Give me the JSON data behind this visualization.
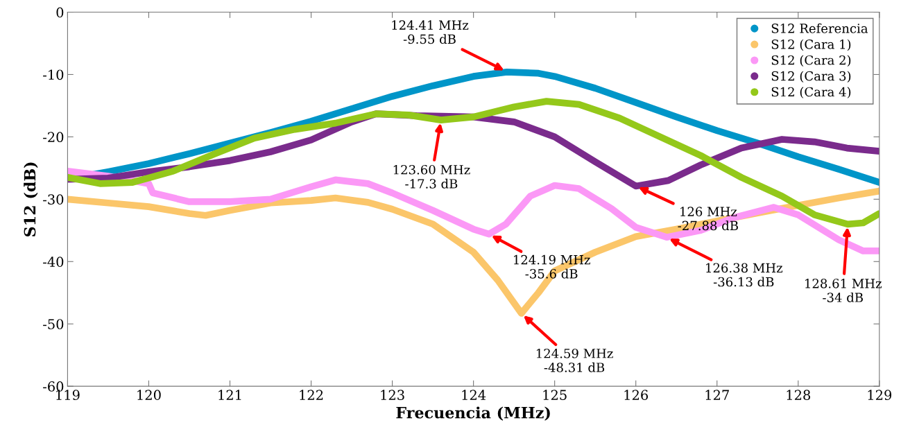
{
  "chart_data": {
    "type": "line",
    "xlabel": "Frecuencia (MHz)",
    "ylabel": "S12 (dB)",
    "xlim": [
      119,
      129
    ],
    "ylim": [
      -60,
      0
    ],
    "xticks": [
      119,
      120,
      121,
      122,
      123,
      124,
      125,
      126,
      127,
      128,
      129
    ],
    "yticks": [
      -60,
      -50,
      -40,
      -30,
      -20,
      -10,
      0
    ],
    "grid": false,
    "legend": "top right",
    "marker": "circle",
    "line_style": "solid",
    "series": [
      {
        "name": "S12 Referencia",
        "color": "#0095c8",
        "x": [
          119.2,
          119.5,
          120,
          120.5,
          121,
          121.5,
          122,
          122.5,
          123,
          123.5,
          124,
          124.41,
          124.8,
          125,
          125.5,
          126,
          126.5,
          127,
          127.5,
          128,
          128.5,
          129
        ],
        "values": [
          -26.3,
          -25.6,
          -24.3,
          -22.7,
          -21.0,
          -19.3,
          -17.5,
          -15.5,
          -13.5,
          -11.8,
          -10.3,
          -9.6,
          -9.8,
          -10.3,
          -12.2,
          -14.5,
          -16.8,
          -19.0,
          -21.0,
          -23.2,
          -25.2,
          -27.3
        ]
      },
      {
        "name": "S12 (Cara 1)",
        "color": "#fbc66a",
        "x": [
          119,
          119.5,
          120,
          120.5,
          120.7,
          121,
          121.5,
          122,
          122.3,
          122.7,
          123,
          123.5,
          124,
          124.3,
          124.59,
          124.8,
          125,
          125.5,
          126,
          126.5,
          127,
          127.5,
          128,
          128.5,
          129
        ],
        "values": [
          -30,
          -30.6,
          -31.2,
          -32.3,
          -32.6,
          -31.8,
          -30.6,
          -30.2,
          -29.8,
          -30.5,
          -31.6,
          -34,
          -38.5,
          -43,
          -48.3,
          -45,
          -41.5,
          -38.5,
          -36,
          -34.8,
          -33.5,
          -32.2,
          -31,
          -29.8,
          -28.7
        ]
      },
      {
        "name": "S12 (Cara 2)",
        "color": "#fb98f6",
        "x": [
          119,
          119.5,
          120,
          120.05,
          120.5,
          121,
          121.5,
          122,
          122.3,
          122.7,
          123,
          123.5,
          124,
          124.19,
          124.4,
          124.7,
          125,
          125.3,
          125.7,
          126,
          126.38,
          126.8,
          127.2,
          127.7,
          128,
          128.5,
          128.8,
          129
        ],
        "values": [
          -25.5,
          -26.3,
          -27.5,
          -29.0,
          -30.4,
          -30.4,
          -30.0,
          -28,
          -26.9,
          -27.5,
          -29,
          -31.8,
          -34.8,
          -35.6,
          -34,
          -29.5,
          -27.8,
          -28.3,
          -31.5,
          -34.5,
          -36.1,
          -35,
          -33,
          -31.3,
          -32.5,
          -36.5,
          -38.3,
          -38.3
        ]
      },
      {
        "name": "S12 (Cara 3)",
        "color": "#7a2b8c",
        "x": [
          119,
          119.5,
          120,
          120.5,
          121,
          121.5,
          122,
          122.5,
          122.8,
          123.3,
          124,
          124.5,
          125,
          125.5,
          126,
          126.4,
          126.8,
          127.3,
          127.8,
          128.2,
          128.6,
          129
        ],
        "values": [
          -26.8,
          -26.6,
          -25.6,
          -24.8,
          -23.8,
          -22.4,
          -20.5,
          -17.6,
          -16.3,
          -16.6,
          -16.8,
          -17.6,
          -20,
          -24,
          -27.9,
          -27,
          -24.5,
          -21.8,
          -20.4,
          -20.8,
          -21.8,
          -22.3
        ]
      },
      {
        "name": "S12 (Cara 4)",
        "color": "#94c81a",
        "x": [
          119,
          119.4,
          119.8,
          120.3,
          120.8,
          121.3,
          121.8,
          122.3,
          122.8,
          123.2,
          123.6,
          124,
          124.5,
          124.9,
          125.3,
          125.8,
          126.3,
          126.8,
          127.3,
          127.8,
          128.2,
          128.61,
          128.8,
          129
        ],
        "values": [
          -26.5,
          -27.5,
          -27.3,
          -25.5,
          -22.8,
          -20.2,
          -18.8,
          -17.8,
          -16.3,
          -16.5,
          -17.3,
          -16.8,
          -15.2,
          -14.3,
          -14.8,
          -17.0,
          -20.0,
          -23,
          -26.5,
          -29.5,
          -32.5,
          -34,
          -33.8,
          -32.3
        ]
      }
    ],
    "annotations": [
      {
        "text": "124.41 MHz\n-9.55 dB",
        "x": 124.41,
        "y": -9.55
      },
      {
        "text": "123.60 MHz\n-17.3 dB",
        "x": 123.6,
        "y": -17.3
      },
      {
        "text": "126 MHz\n-27.88 dB",
        "x": 126,
        "y": -27.88
      },
      {
        "text": "124.19 MHz\n-35.6 dB",
        "x": 124.19,
        "y": -35.6
      },
      {
        "text": "126.38 MHz\n-36.13 dB",
        "x": 126.38,
        "y": -36.13
      },
      {
        "text": "128.61 MHz\n-34 dB",
        "x": 128.61,
        "y": -34
      },
      {
        "text": "124.59 MHz\n-48.31 dB",
        "x": 124.59,
        "y": -48.31
      }
    ]
  }
}
